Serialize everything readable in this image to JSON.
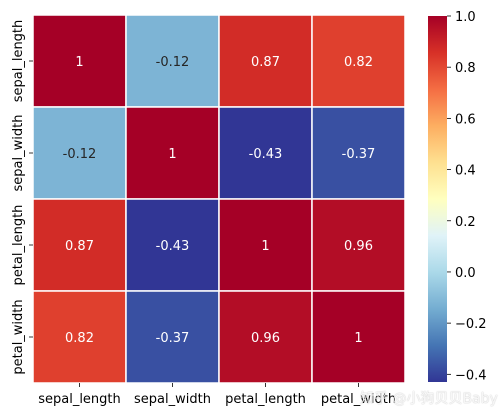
{
  "chart_data": {
    "type": "heatmap",
    "title": "",
    "xlabel": "",
    "ylabel": "",
    "x_categories": [
      "sepal_length",
      "sepal_width",
      "petal_length",
      "petal_width"
    ],
    "y_categories": [
      "sepal_length",
      "sepal_width",
      "petal_length",
      "petal_width"
    ],
    "values": [
      [
        1,
        -0.12,
        0.87,
        0.82
      ],
      [
        -0.12,
        1,
        -0.43,
        -0.37
      ],
      [
        0.87,
        -0.43,
        1,
        0.96
      ],
      [
        0.82,
        -0.37,
        0.96,
        1
      ]
    ],
    "value_labels": [
      [
        "1",
        "-0.12",
        "0.87",
        "0.82"
      ],
      [
        "-0.12",
        "1",
        "-0.43",
        "-0.37"
      ],
      [
        "0.87",
        "-0.43",
        "1",
        "0.96"
      ],
      [
        "0.82",
        "-0.37",
        "0.96",
        "1"
      ]
    ],
    "colormap": "RdYlBu_r",
    "colorbar": {
      "range": [
        -0.43,
        1.0
      ],
      "ticks": [
        1.0,
        0.8,
        0.6,
        0.4,
        0.2,
        0.0,
        -0.2,
        -0.4
      ],
      "tick_labels": [
        "1.0",
        "0.8",
        "0.6",
        "0.4",
        "0.2",
        "0.0",
        "−0.2",
        "−0.4"
      ]
    },
    "colors": [
      "#313695",
      "#4575b4",
      "#74add1",
      "#abd9e9",
      "#e0f3f8",
      "#ffffbf",
      "#fee090",
      "#fdae61",
      "#f46d43",
      "#d73027",
      "#a50026"
    ],
    "grid_lines": true
  },
  "watermark": "知乎 @小狗贝贝Baby"
}
